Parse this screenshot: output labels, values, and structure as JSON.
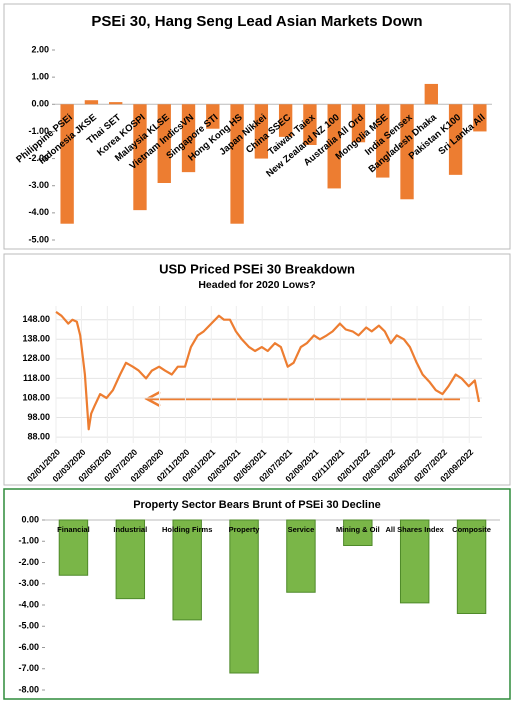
{
  "chart_data": [
    {
      "type": "bar",
      "title": "PSEi 30, Hang Seng Lead Asian Markets Down",
      "categories": [
        "Philippine PSEi",
        "Indonesia JKSE",
        "Thai SET",
        "Korea KOSPI",
        "Malaysia KLSE",
        "Vietnam IndicsVN",
        "Singapore STI",
        "Hong Kong HS",
        "Japan Nikkei",
        "China SSEC",
        "Taiwan Taiex",
        "New Zealand NZ 100",
        "Australia All Ord",
        "Mongolia MSE",
        "India Sensex",
        "Bangladesh Dhaka",
        "Pakistan K100",
        "Sri Lanka All"
      ],
      "values": [
        -4.4,
        0.15,
        0.08,
        -3.9,
        -2.9,
        -2.5,
        -0.9,
        -4.4,
        -2.0,
        -1.2,
        -1.5,
        -3.1,
        -1.4,
        -2.7,
        -3.5,
        0.75,
        -2.6,
        -1.0
      ],
      "color": "#ed7d31",
      "ylim": [
        -5,
        2
      ],
      "yticks": [
        {
          "value": 2,
          "label": "2.00"
        },
        {
          "value": 1,
          "label": "1.00"
        },
        {
          "value": 0,
          "label": "0.00"
        },
        {
          "value": -1,
          "label": "-1.00"
        },
        {
          "value": -2,
          "label": "-2.00"
        },
        {
          "value": -3,
          "label": "-3.00"
        },
        {
          "value": -4,
          "label": "-4.00"
        },
        {
          "value": -5,
          "label": "-5.00"
        }
      ],
      "grid": false,
      "label_position": "rotated"
    },
    {
      "type": "line",
      "title": "USD Priced PSEi 30 Breakdown",
      "subtitle": "Headed for 2020 Lows?",
      "x": [
        "02/01/2020",
        "15/01/2020",
        "31/01/2020",
        "10/02/2020",
        "20/02/2020",
        "28/02/2020",
        "10/03/2020",
        "19/03/2020",
        "25/03/2020",
        "02/04/2020",
        "15/04/2020",
        "30/04/2020",
        "15/05/2020",
        "01/06/2020",
        "15/06/2020",
        "01/07/2020",
        "15/07/2020",
        "01/08/2020",
        "15/08/2020",
        "01/09/2020",
        "15/09/2020",
        "01/10/2020",
        "15/10/2020",
        "01/11/2020",
        "15/11/2020",
        "01/12/2020",
        "15/12/2020",
        "02/01/2021",
        "20/01/2021",
        "01/02/2021",
        "15/02/2021",
        "01/03/2021",
        "15/03/2021",
        "01/04/2021",
        "15/04/2021",
        "01/05/2021",
        "15/05/2021",
        "01/06/2021",
        "15/06/2021",
        "01/07/2021",
        "15/07/2021",
        "01/08/2021",
        "15/08/2021",
        "01/09/2021",
        "15/09/2021",
        "01/10/2021",
        "15/10/2021",
        "01/11/2021",
        "15/11/2021",
        "01/12/2021",
        "15/12/2021",
        "02/01/2022",
        "15/01/2022",
        "01/02/2022",
        "15/02/2022",
        "01/03/2022",
        "15/03/2022",
        "01/04/2022",
        "15/04/2022",
        "01/05/2022",
        "15/05/2022",
        "01/06/2022",
        "15/06/2022",
        "01/07/2022",
        "15/07/2022",
        "01/08/2022",
        "15/08/2022",
        "01/09/2022",
        "15/09/2022",
        "25/09/2022"
      ],
      "series": [
        {
          "color": "#ed7d31",
          "values": [
            152,
            150,
            146,
            148,
            147,
            140,
            120,
            92,
            100,
            104,
            110,
            108,
            112,
            120,
            126,
            124,
            122,
            118,
            122,
            124,
            122,
            120,
            124,
            124,
            134,
            140,
            142,
            146,
            150,
            148,
            148,
            142,
            138,
            134,
            132,
            134,
            132,
            136,
            134,
            124,
            126,
            134,
            136,
            140,
            138,
            140,
            142,
            146,
            143,
            142,
            140,
            144,
            142,
            145,
            142,
            136,
            140,
            138,
            134,
            126,
            120,
            116,
            112,
            110,
            114,
            120,
            118,
            114,
            117,
            106
          ]
        }
      ],
      "xlim": [
        "02/01/2020",
        "02/10/2022"
      ],
      "xticks": [
        "02/01/2020",
        "02/03/2020",
        "02/05/2020",
        "02/07/2020",
        "02/09/2020",
        "02/11/2020",
        "02/01/2021",
        "02/03/2021",
        "02/05/2021",
        "02/07/2021",
        "02/09/2021",
        "02/11/2021",
        "02/01/2022",
        "02/03/2022",
        "02/05/2022",
        "02/07/2022",
        "02/09/2022"
      ],
      "ylim": [
        85,
        155
      ],
      "yticks": [
        {
          "value": 88,
          "label": "88.00"
        },
        {
          "value": 98,
          "label": "98.00"
        },
        {
          "value": 108,
          "label": "108.00"
        },
        {
          "value": 118,
          "label": "118.00"
        },
        {
          "value": 128,
          "label": "128.00"
        },
        {
          "value": 138,
          "label": "138.00"
        },
        {
          "value": 148,
          "label": "148.00"
        }
      ],
      "grid": true
    },
    {
      "type": "bar",
      "title": "Property Sector Bears Brunt of PSEi 30 Decline",
      "categories": [
        "Financial",
        "Industrial",
        "Holding Firms",
        "Property",
        "Service",
        "Mining & Oil",
        "All Shares Index",
        "Composite"
      ],
      "values": [
        -2.6,
        -3.7,
        -4.7,
        -7.2,
        -3.4,
        -1.2,
        -3.9,
        -4.4
      ],
      "color": "#7ab648",
      "ylim": [
        -8,
        0
      ],
      "yticks": [
        {
          "value": 0,
          "label": "0.00"
        },
        {
          "value": -1,
          "label": "-1.00"
        },
        {
          "value": -2,
          "label": "-2.00"
        },
        {
          "value": -3,
          "label": "-3.00"
        },
        {
          "value": -4,
          "label": "-4.00"
        },
        {
          "value": -5,
          "label": "-5.00"
        },
        {
          "value": -6,
          "label": "-6.00"
        },
        {
          "value": -7,
          "label": "-7.00"
        },
        {
          "value": -8,
          "label": "-8.00"
        }
      ],
      "grid": false,
      "label_position": "top"
    }
  ]
}
